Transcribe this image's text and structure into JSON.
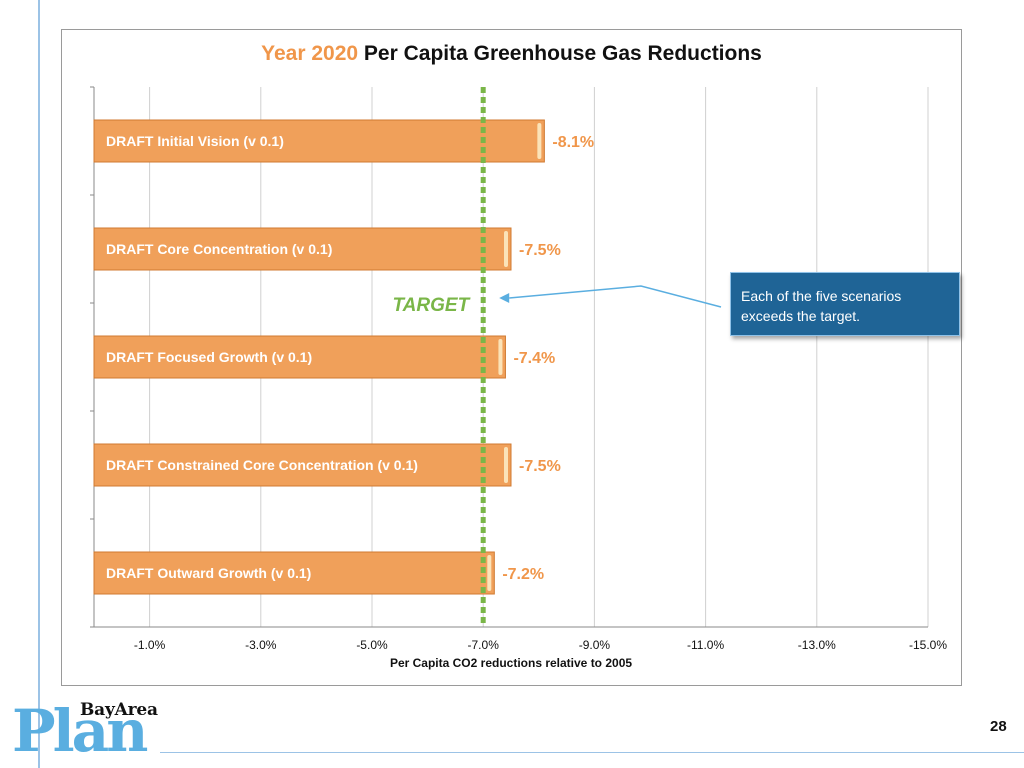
{
  "slide": {
    "page_number": "28",
    "logo_top": "BayArea",
    "logo_main": "Plan"
  },
  "chart_data": {
    "type": "bar",
    "orientation": "horizontal",
    "title_part1": "Year 2020",
    "title_part2": "Per Capita Greenhouse Gas Reductions",
    "xlabel": "Per Capita CO2 reductions relative to 2005",
    "x_axis_reversed": true,
    "xlim": [
      0,
      -15
    ],
    "xticks": [
      -1,
      -3,
      -5,
      -7,
      -9,
      -11,
      -13,
      -15
    ],
    "xtick_labels": [
      "-1.0%",
      "-3.0%",
      "-5.0%",
      "-7.0%",
      "-9.0%",
      "-11.0%",
      "-13.0%",
      "-15.0%"
    ],
    "grid": true,
    "categories": [
      "DRAFT Initial Vision (v 0.1)",
      "DRAFT Core Concentration (v 0.1)",
      "DRAFT Focused Growth (v 0.1)",
      "DRAFT Constrained Core Concentration (v 0.1)",
      "DRAFT Outward Growth (v 0.1)"
    ],
    "values": [
      -8.1,
      -7.5,
      -7.4,
      -7.5,
      -7.2
    ],
    "value_labels": [
      "-8.1%",
      "-7.5%",
      "-7.4%",
      "-7.5%",
      "-7.2%"
    ],
    "target": {
      "value": -7.0,
      "label": "TARGET"
    },
    "annotation": "Each of the five scenarios exceeds the target.",
    "colors": {
      "bar": "#f0a05a",
      "bar_edge": "#d07a30",
      "value_label": "#f0964a",
      "target": "#7ab648",
      "annotation_bg": "#1f6496",
      "grid": "#d0d0d0"
    }
  }
}
